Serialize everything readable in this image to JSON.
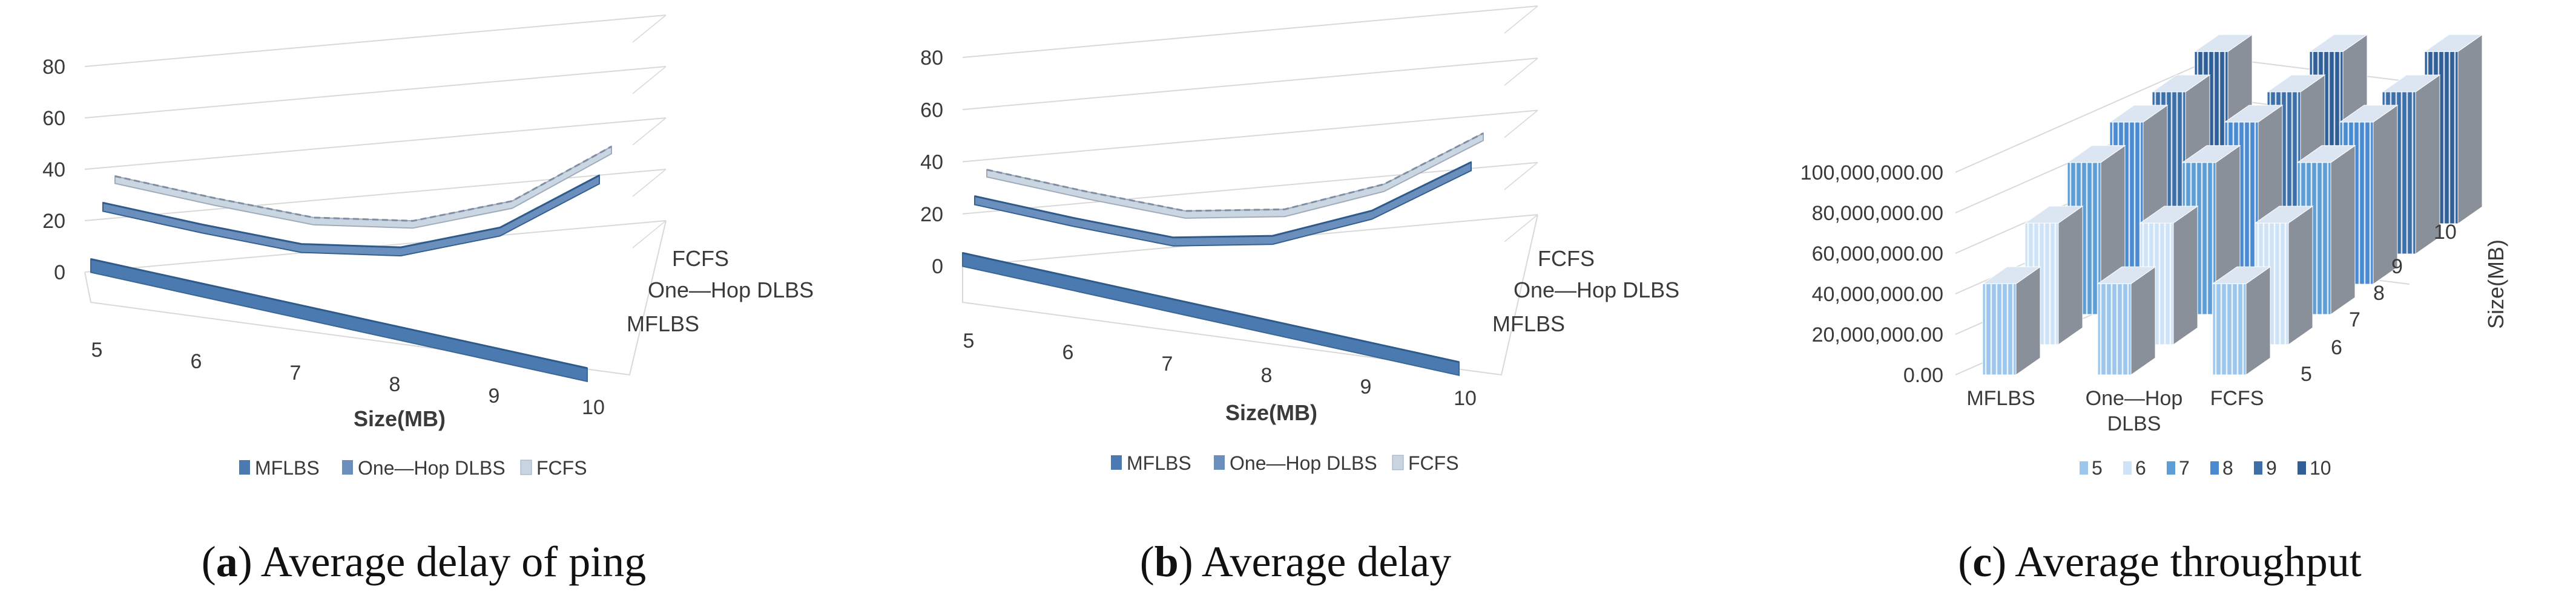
{
  "figure": {
    "panels": [
      {
        "caption_letter": "a",
        "caption_text": "Average delay of ping"
      },
      {
        "caption_letter": "b",
        "caption_text": "Average delay"
      },
      {
        "caption_letter": "c",
        "caption_text": "Average throughput"
      }
    ]
  },
  "colors": {
    "mflbs": "#4a7ab0",
    "onehop": "#6b8fbd",
    "fcfs": "#c9d4e2",
    "grid": "#d9d9d9",
    "text": "#3a3a3a",
    "dark_bar": "#8a9099",
    "series_colors": [
      "#9cc6ec",
      "#cfe3f7",
      "#5e9ed6",
      "#4a8ad0",
      "#3d6fa8",
      "#2f5f96"
    ]
  },
  "chart_data": [
    {
      "type": "3d-line",
      "title": "Average delay of ping",
      "xlabel": "Size(MB)",
      "ylabel": "",
      "categories": [
        "5",
        "6",
        "7",
        "8",
        "9",
        "10"
      ],
      "y_ticks": [
        "0",
        "20",
        "40",
        "60",
        "80"
      ],
      "ylim": [
        0,
        80
      ],
      "depth_labels": [
        "FCFS",
        "One—Hop DLBS",
        "MFLBS"
      ],
      "legend": [
        "MFLBS",
        "One—Hop DLBS",
        "FCFS"
      ],
      "series": [
        {
          "name": "MFLBS",
          "values": [
            3,
            3,
            3,
            3,
            3,
            3
          ]
        },
        {
          "name": "One—Hop DLBS",
          "values": [
            13,
            13,
            14,
            22,
            40,
            72
          ]
        },
        {
          "name": "FCFS",
          "values": [
            14,
            14,
            15,
            23,
            41,
            74
          ]
        }
      ]
    },
    {
      "type": "3d-line",
      "title": "Average delay",
      "xlabel": "Size(MB)",
      "ylabel": "",
      "categories": [
        "5",
        "6",
        "7",
        "8",
        "9",
        "10"
      ],
      "y_ticks": [
        "0",
        "20",
        "40",
        "60",
        "80"
      ],
      "ylim": [
        0,
        80
      ],
      "depth_labels": [
        "FCFS",
        "One—Hop DLBS",
        "MFLBS"
      ],
      "legend": [
        "MFLBS",
        "One—Hop DLBS",
        "FCFS"
      ],
      "series": [
        {
          "name": "MFLBS",
          "values": [
            3,
            3,
            3,
            3,
            3,
            3
          ]
        },
        {
          "name": "One—Hop DLBS",
          "values": [
            13,
            13,
            14,
            24,
            44,
            74
          ]
        },
        {
          "name": "FCFS",
          "values": [
            14,
            14,
            15,
            25,
            45,
            76
          ]
        }
      ]
    },
    {
      "type": "3d-bar",
      "title": "Average throughput",
      "xlabel": "",
      "ylabel": "",
      "depth_axis_label": "Size(MB)",
      "categories": [
        "MFLBS",
        "One—Hop DLBS",
        "FCFS"
      ],
      "category_labels": [
        {
          "lines": [
            "MFLBS"
          ]
        },
        {
          "lines": [
            "One—Hop",
            "DLBS"
          ]
        },
        {
          "lines": [
            "FCFS"
          ]
        }
      ],
      "y_ticks": [
        "0.00",
        "20,000,000.00",
        "40,000,000.00",
        "60,000,000.00",
        "80,000,000.00",
        "100,000,000.00"
      ],
      "ylim": [
        0,
        100000000
      ],
      "depth_labels": [
        "5",
        "6",
        "7",
        "8",
        "9",
        "10"
      ],
      "legend": [
        "5",
        "6",
        "7",
        "8",
        "9",
        "10"
      ],
      "series": [
        {
          "name": "5",
          "values": [
            45000000,
            45000000,
            45000000
          ]
        },
        {
          "name": "6",
          "values": [
            60000000,
            60000000,
            60000000
          ]
        },
        {
          "name": "7",
          "values": [
            75000000,
            75000000,
            75000000
          ]
        },
        {
          "name": "8",
          "values": [
            80000000,
            80000000,
            80000000
          ]
        },
        {
          "name": "9",
          "values": [
            80000000,
            80000000,
            80000000
          ]
        },
        {
          "name": "10",
          "values": [
            85000000,
            85000000,
            85000000
          ]
        }
      ]
    }
  ]
}
